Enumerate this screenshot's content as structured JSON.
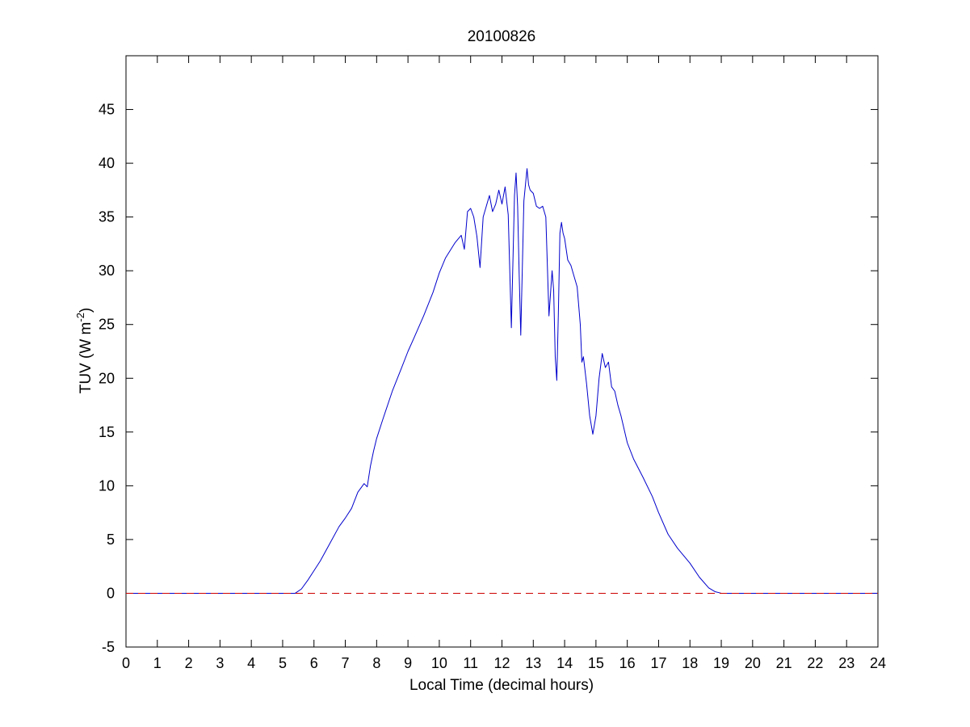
{
  "chart_data": {
    "type": "line",
    "title": "20100826",
    "xlabel": "Local Time (decimal hours)",
    "ylabel_main": "TUV (W m",
    "ylabel_sup": "-2",
    "ylabel_close": ")",
    "xlim": [
      0,
      24
    ],
    "ylim": [
      -5,
      50
    ],
    "x_ticks": [
      0,
      1,
      2,
      3,
      4,
      5,
      6,
      7,
      8,
      9,
      10,
      11,
      12,
      13,
      14,
      15,
      16,
      17,
      18,
      19,
      20,
      21,
      22,
      23,
      24
    ],
    "x_tick_labels": [
      "0",
      "1",
      "2",
      "3",
      "4",
      "5",
      "6",
      "7",
      "8",
      "9",
      "10",
      "11",
      "12",
      "13",
      "14",
      "15",
      "16",
      "17",
      "18",
      "19",
      "20",
      "21",
      "22",
      "23",
      "24"
    ],
    "y_ticks": [
      -5,
      0,
      5,
      10,
      15,
      20,
      25,
      30,
      35,
      40,
      45
    ],
    "y_tick_labels": [
      "-5",
      "0",
      "5",
      "10",
      "15",
      "20",
      "25",
      "30",
      "35",
      "40",
      "45"
    ],
    "grid": false,
    "colors": {
      "series": "#0000cc",
      "reference": "#cc0000"
    },
    "series": [
      {
        "style": "solid",
        "x": [
          0,
          5.4,
          5.6,
          5.8,
          6.0,
          6.2,
          6.5,
          6.8,
          7.0,
          7.2,
          7.4,
          7.6,
          7.7,
          7.8,
          7.9,
          8.0,
          8.2,
          8.5,
          8.8,
          9.0,
          9.2,
          9.5,
          9.8,
          10.0,
          10.2,
          10.5,
          10.7,
          10.8,
          10.9,
          11.0,
          11.1,
          11.2,
          11.3,
          11.4,
          11.5,
          11.6,
          11.7,
          11.8,
          11.9,
          12.0,
          12.1,
          12.2,
          12.3,
          12.4,
          12.45,
          12.5,
          12.55,
          12.6,
          12.7,
          12.8,
          12.85,
          12.9,
          13.0,
          13.1,
          13.2,
          13.3,
          13.4,
          13.5,
          13.6,
          13.65,
          13.7,
          13.75,
          13.8,
          13.85,
          13.9,
          13.95,
          14.0,
          14.1,
          14.2,
          14.3,
          14.4,
          14.5,
          14.55,
          14.6,
          14.7,
          14.8,
          14.9,
          15.0,
          15.1,
          15.2,
          15.3,
          15.4,
          15.5,
          15.6,
          15.7,
          15.8,
          16.0,
          16.2,
          16.5,
          16.8,
          17.0,
          17.3,
          17.6,
          18.0,
          18.3,
          18.6,
          18.8,
          19.0,
          19.2,
          24.0
        ],
        "y": [
          0,
          0,
          0.4,
          1.2,
          2.1,
          3.0,
          4.6,
          6.2,
          7.0,
          7.9,
          9.4,
          10.2,
          9.9,
          11.8,
          13.2,
          14.4,
          16.2,
          18.8,
          21.0,
          22.5,
          23.8,
          25.8,
          28.0,
          29.8,
          31.2,
          32.6,
          33.3,
          32.0,
          35.5,
          35.8,
          35.0,
          33.2,
          30.3,
          35.0,
          36.0,
          37.0,
          35.5,
          36.2,
          37.5,
          36.2,
          37.8,
          35.2,
          24.7,
          37.0,
          39.1,
          36.0,
          29.6,
          24.0,
          36.5,
          39.5,
          38.0,
          37.5,
          37.2,
          36.0,
          35.8,
          36.0,
          35.0,
          25.8,
          30.0,
          28.2,
          22.0,
          19.8,
          26.0,
          33.5,
          34.5,
          33.5,
          33.0,
          31.0,
          30.5,
          29.5,
          28.5,
          25.0,
          21.5,
          22.0,
          19.5,
          16.5,
          14.8,
          16.5,
          20.0,
          22.3,
          21.0,
          21.5,
          19.2,
          18.8,
          17.5,
          16.5,
          14.0,
          12.5,
          10.8,
          9.0,
          7.5,
          5.5,
          4.2,
          2.8,
          1.5,
          0.5,
          0.15,
          0.0,
          0.0,
          0.0
        ]
      },
      {
        "style": "dashed",
        "x": [
          0,
          24
        ],
        "y": [
          0,
          0
        ]
      }
    ]
  }
}
